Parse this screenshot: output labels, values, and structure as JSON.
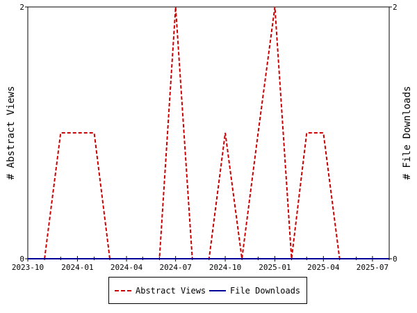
{
  "chart_data": {
    "type": "line",
    "xlabel": "",
    "ylabel_left": "# Abstract Views",
    "ylabel_right": "# File Downloads",
    "x_range": [
      "2023-10-01",
      "2025-08-01"
    ],
    "x_ticks": [
      "2023-10",
      "2024-01",
      "2024-04",
      "2024-07",
      "2024-10",
      "2025-01",
      "2025-04",
      "2025-07"
    ],
    "ylim": [
      0,
      2
    ],
    "y_ticks_left": [
      "0",
      "2"
    ],
    "y_ticks_right": [
      "0",
      "2"
    ],
    "grid": false,
    "legend_position": "bottom",
    "series": [
      {
        "name": "Abstract Views",
        "color": "#cc0000",
        "style": "dashed",
        "axis": "left",
        "points": [
          [
            "2023-10-01",
            0
          ],
          [
            "2023-11-01",
            0
          ],
          [
            "2023-12-01",
            1
          ],
          [
            "2024-01-01",
            1
          ],
          [
            "2024-02-01",
            1
          ],
          [
            "2024-03-01",
            0
          ],
          [
            "2024-04-01",
            0
          ],
          [
            "2024-05-01",
            0
          ],
          [
            "2024-06-01",
            0
          ],
          [
            "2024-07-01",
            2
          ],
          [
            "2024-08-01",
            0
          ],
          [
            "2024-09-01",
            0
          ],
          [
            "2024-10-01",
            1
          ],
          [
            "2024-11-01",
            0
          ],
          [
            "2024-12-01",
            1
          ],
          [
            "2025-01-01",
            2
          ],
          [
            "2025-02-01",
            0
          ],
          [
            "2025-03-01",
            1
          ],
          [
            "2025-04-01",
            1
          ],
          [
            "2025-05-01",
            0
          ],
          [
            "2025-06-01",
            0
          ],
          [
            "2025-07-01",
            0
          ],
          [
            "2025-08-01",
            0
          ]
        ]
      },
      {
        "name": "File Downloads",
        "color": "#000099",
        "style": "solid",
        "axis": "right",
        "points": [
          [
            "2023-10-01",
            0
          ],
          [
            "2025-08-01",
            0
          ]
        ]
      }
    ]
  }
}
